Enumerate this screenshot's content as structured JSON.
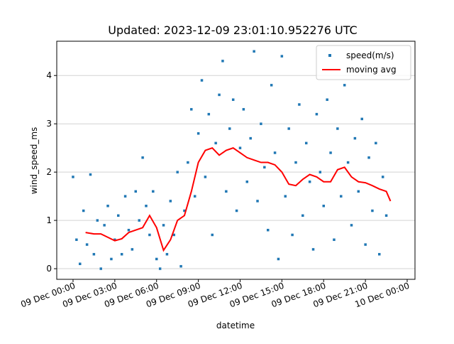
{
  "chart_data": {
    "type": "scatter",
    "title": "Updated: 2023-12-09 23:01:10.952276 UTC",
    "x_label": "datetime",
    "y_label": "wind_speed_ms",
    "xlim": [
      -1.17,
      24.56
    ],
    "ylim": [
      -0.22,
      4.71
    ],
    "xticks": [
      {
        "value": 0,
        "label": "09 Dec 00:00"
      },
      {
        "value": 3,
        "label": "09 Dec 03:00"
      },
      {
        "value": 6,
        "label": "09 Dec 06:00"
      },
      {
        "value": 9,
        "label": "09 Dec 09:00"
      },
      {
        "value": 12,
        "label": "09 Dec 12:00"
      },
      {
        "value": 15,
        "label": "09 Dec 15:00"
      },
      {
        "value": 18,
        "label": "09 Dec 18:00"
      },
      {
        "value": 21,
        "label": "09 Dec 21:00"
      },
      {
        "value": 24,
        "label": "10 Dec 00:00"
      }
    ],
    "yticks": [
      0,
      1,
      2,
      3,
      4
    ],
    "grid": "y",
    "legend": "upper right",
    "series": [
      {
        "name": "speed(m/s)",
        "kind": "scatter",
        "color": "#1f77b4",
        "x": [
          0,
          0.25,
          0.5,
          0.75,
          1,
          1.25,
          1.5,
          1.75,
          2,
          2.25,
          2.5,
          2.75,
          3,
          3.25,
          3.5,
          3.75,
          4,
          4.25,
          4.5,
          4.75,
          5,
          5.25,
          5.5,
          5.75,
          6,
          6.25,
          6.5,
          6.75,
          7,
          7.25,
          7.5,
          7.75,
          8,
          8.25,
          8.5,
          8.75,
          9,
          9.25,
          9.5,
          9.75,
          10,
          10.25,
          10.5,
          10.75,
          11,
          11.25,
          11.5,
          11.75,
          12,
          12.25,
          12.5,
          12.75,
          13,
          13.25,
          13.5,
          13.75,
          14,
          14.25,
          14.5,
          14.75,
          15,
          15.25,
          15.5,
          15.75,
          16,
          16.25,
          16.5,
          16.75,
          17,
          17.25,
          17.5,
          17.75,
          18,
          18.25,
          18.5,
          18.75,
          19,
          19.25,
          19.5,
          19.75,
          20,
          20.25,
          20.5,
          20.75,
          21,
          21.25,
          21.5,
          21.75,
          22,
          22.25,
          22.5
        ],
        "values": [
          1.9,
          0.6,
          0.1,
          1.2,
          0.5,
          1.95,
          0.3,
          1.0,
          0.0,
          0.9,
          1.3,
          0.2,
          0.6,
          1.1,
          0.3,
          1.5,
          0.8,
          0.4,
          1.6,
          1.0,
          2.3,
          1.3,
          0.7,
          1.6,
          0.2,
          0.0,
          0.9,
          0.3,
          1.4,
          0.7,
          2.0,
          0.05,
          1.2,
          2.2,
          3.3,
          1.5,
          2.8,
          3.9,
          1.9,
          3.2,
          0.7,
          2.6,
          3.6,
          4.3,
          1.6,
          2.9,
          3.5,
          1.2,
          2.5,
          3.3,
          1.8,
          2.7,
          4.5,
          1.4,
          3.0,
          2.1,
          0.8,
          3.8,
          2.4,
          0.2,
          4.4,
          1.5,
          2.9,
          0.7,
          2.2,
          3.4,
          1.1,
          2.6,
          1.8,
          0.4,
          3.2,
          2.0,
          1.3,
          3.5,
          2.4,
          0.6,
          2.9,
          1.5,
          3.8,
          2.2,
          0.9,
          2.7,
          1.6,
          3.1,
          0.5,
          2.3,
          1.2,
          2.6,
          0.3,
          1.9,
          1.1
        ]
      },
      {
        "name": "moving avg",
        "kind": "line",
        "color": "#ff0000",
        "x": [
          0.9,
          1.5,
          2,
          2.5,
          3,
          3.5,
          4,
          4.5,
          5,
          5.5,
          6,
          6.5,
          7,
          7.5,
          8,
          8.5,
          9,
          9.5,
          10,
          10.5,
          11,
          11.5,
          12,
          12.5,
          13,
          13.5,
          14,
          14.5,
          15,
          15.5,
          16,
          16.5,
          17,
          17.5,
          18,
          18.5,
          19,
          19.5,
          20,
          20.5,
          21,
          21.5,
          22,
          22.5,
          22.8
        ],
        "values": [
          0.75,
          0.72,
          0.72,
          0.65,
          0.58,
          0.62,
          0.75,
          0.8,
          0.85,
          1.1,
          0.85,
          0.38,
          0.6,
          1.0,
          1.1,
          1.6,
          2.2,
          2.45,
          2.5,
          2.35,
          2.45,
          2.5,
          2.4,
          2.3,
          2.25,
          2.2,
          2.2,
          2.15,
          2.0,
          1.75,
          1.72,
          1.85,
          1.95,
          1.9,
          1.8,
          1.8,
          2.05,
          2.1,
          1.9,
          1.8,
          1.78,
          1.72,
          1.65,
          1.6,
          1.4
        ]
      }
    ]
  }
}
